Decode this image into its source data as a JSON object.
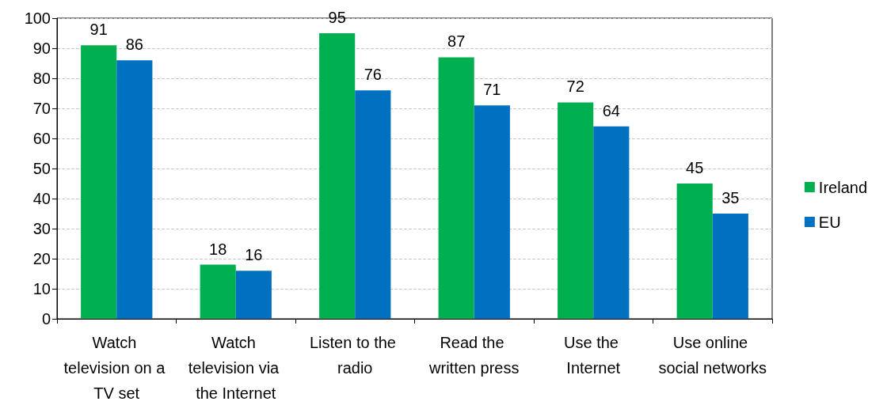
{
  "chart_data": {
    "type": "bar",
    "categories": [
      "Watch television on a TV set",
      "Watch television via the Internet",
      "Listen to the radio",
      "Read the written press",
      "Use the Internet",
      "Use online social networks"
    ],
    "series": [
      {
        "name": "Ireland",
        "color": "#00b050",
        "values": [
          91,
          18,
          95,
          87,
          72,
          45
        ]
      },
      {
        "name": "EU",
        "color": "#0070c0",
        "values": [
          86,
          16,
          76,
          71,
          64,
          35
        ]
      }
    ],
    "ylim": [
      0,
      100
    ],
    "yticks": [
      0,
      10,
      20,
      30,
      40,
      50,
      60,
      70,
      80,
      90,
      100
    ],
    "grid": "y",
    "legend": "right",
    "data_labels": true
  }
}
